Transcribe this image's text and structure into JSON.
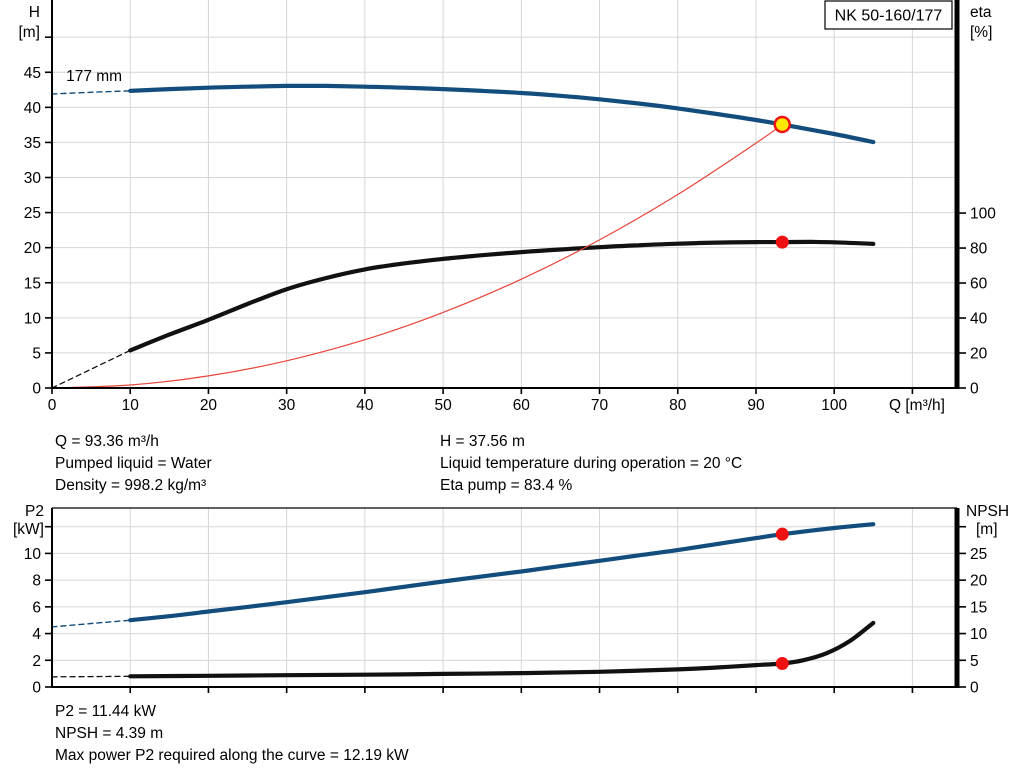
{
  "colors": {
    "curve_blue": "#134d7e",
    "curve_black": "#111111",
    "curve_red": "#e8443a",
    "marker_red": "#ee1111",
    "marker_yellow": "#ffe600",
    "grid": "#d6d6d6",
    "axis": "#000000",
    "box_bg": "#ffffff"
  },
  "info_top": {
    "left": [
      "Q = 93.36 m³/h",
      "Pumped liquid = Water",
      "Density = 998.2 kg/m³"
    ],
    "right": [
      "H = 37.56 m",
      "Liquid temperature during operation = 20 °C",
      "Eta pump = 83.4 %"
    ]
  },
  "info_bottom": {
    "lines": [
      "P2 = 11.44 kW",
      "NPSH = 4.39 m",
      "Max power P2 required along the curve = 12.19 kW"
    ]
  },
  "chart_data": [
    {
      "type": "line",
      "name": "qh-eta-chart",
      "title": "NK 50-160/177",
      "x_axis": {
        "label": "Q [m³/h]",
        "min": 0,
        "max": 115.7,
        "ticks_labeled": [
          0,
          10,
          20,
          30,
          40,
          50,
          60,
          70,
          80,
          90,
          100
        ],
        "ticks_unlabeled": [
          110
        ],
        "grid": [
          10,
          20,
          30,
          40,
          50,
          60,
          70,
          80,
          90,
          100,
          110
        ]
      },
      "y_left": {
        "label": [
          "H",
          "[m]"
        ],
        "min": 0,
        "max": 55.3,
        "ticks_labeled": [
          0,
          5,
          10,
          15,
          20,
          25,
          30,
          35,
          40,
          45
        ],
        "ticks_unlabeled": [
          50
        ],
        "grid": [
          5,
          10,
          15,
          20,
          25,
          30,
          35,
          40,
          45,
          50
        ]
      },
      "y_right": {
        "label": [
          "eta",
          "[%]"
        ],
        "min": 0,
        "max": 221.8,
        "ticks_labeled": [
          0,
          20,
          40,
          60,
          80,
          100
        ],
        "ticks_unlabeled": [],
        "grid": []
      },
      "annotations": [
        {
          "text": "177 mm",
          "x": 1.8,
          "y": 43.76,
          "axis": "left"
        }
      ],
      "series": [
        {
          "name": "head-curve-extrapolated",
          "axis": "left",
          "style": "dashed",
          "width": 1.4,
          "color_key": "curve_blue",
          "points": [
            [
              0,
              41.9
            ],
            [
              5,
              42.15
            ],
            [
              10,
              42.35
            ]
          ]
        },
        {
          "name": "head-curve",
          "axis": "left",
          "style": "solid",
          "width": 4.2,
          "color_key": "curve_blue",
          "points": [
            [
              10,
              42.35
            ],
            [
              15,
              42.6
            ],
            [
              20,
              42.8
            ],
            [
              25,
              42.95
            ],
            [
              30,
              43.05
            ],
            [
              35,
              43.05
            ],
            [
              40,
              42.95
            ],
            [
              45,
              42.8
            ],
            [
              50,
              42.6
            ],
            [
              55,
              42.35
            ],
            [
              60,
              42.05
            ],
            [
              65,
              41.65
            ],
            [
              70,
              41.15
            ],
            [
              75,
              40.55
            ],
            [
              80,
              39.85
            ],
            [
              85,
              39.05
            ],
            [
              90,
              38.2
            ],
            [
              93.36,
              37.56
            ],
            [
              100,
              36.2
            ],
            [
              105,
              35.05
            ]
          ]
        },
        {
          "name": "eta-curve-extrapolated",
          "axis": "right",
          "style": "dashed",
          "width": 1.3,
          "color_key": "curve_black",
          "points": [
            [
              0,
              0
            ],
            [
              10,
              21.5
            ]
          ]
        },
        {
          "name": "eta-curve",
          "axis": "right",
          "style": "solid",
          "width": 4.2,
          "color_key": "curve_black",
          "points": [
            [
              10,
              21.5
            ],
            [
              15,
              30.5
            ],
            [
              20,
              39
            ],
            [
              25,
              48
            ],
            [
              30,
              56.5
            ],
            [
              35,
              62.8
            ],
            [
              40,
              67.8
            ],
            [
              45,
              71.2
            ],
            [
              50,
              73.8
            ],
            [
              55,
              75.9
            ],
            [
              60,
              77.7
            ],
            [
              65,
              79.2
            ],
            [
              70,
              80.5
            ],
            [
              75,
              81.6
            ],
            [
              80,
              82.5
            ],
            [
              85,
              83.1
            ],
            [
              90,
              83.4
            ],
            [
              93.36,
              83.4
            ],
            [
              97,
              83.5
            ],
            [
              100,
              83.3
            ],
            [
              105,
              82.4
            ]
          ]
        },
        {
          "name": "system-resistance-curve",
          "axis": "left",
          "style": "solid",
          "width": 1.2,
          "color_key": "curve_red",
          "points": [
            [
              0,
              0
            ],
            [
              10,
              0.43
            ],
            [
              20,
              1.72
            ],
            [
              30,
              3.88
            ],
            [
              40,
              6.89
            ],
            [
              50,
              10.77
            ],
            [
              60,
              15.51
            ],
            [
              70,
              21.11
            ],
            [
              80,
              27.58
            ],
            [
              90,
              34.9
            ],
            [
              93.36,
              37.56
            ]
          ]
        }
      ],
      "markers": [
        {
          "name": "duty-point-qh",
          "axis": "left",
          "x": 93.36,
          "y": 37.56,
          "r": 7.5,
          "fill_key": "marker_yellow",
          "stroke_key": "marker_red",
          "stroke_width": 2.5
        },
        {
          "name": "duty-point-eta",
          "axis": "right",
          "x": 93.36,
          "y": 83.4,
          "r": 6.5,
          "fill_key": "marker_red"
        }
      ]
    },
    {
      "type": "line",
      "name": "p2-npsh-chart",
      "title": "",
      "x_axis": {
        "label": "",
        "min": 0,
        "max": 115.7,
        "ticks_labeled": [],
        "ticks_unlabeled": [
          10,
          20,
          30,
          40,
          50,
          60,
          70,
          80,
          90,
          100,
          110
        ],
        "grid": [
          10,
          20,
          30,
          40,
          50,
          60,
          70,
          80,
          90,
          100,
          110
        ]
      },
      "y_left": {
        "label": [
          "P2",
          "[kW]"
        ],
        "min": 0,
        "max": 13.4,
        "ticks_labeled": [
          0,
          2,
          4,
          6,
          8,
          10
        ],
        "ticks_unlabeled": [
          12
        ],
        "grid": [
          2,
          4,
          6,
          8,
          10,
          12
        ]
      },
      "y_right": {
        "label": [
          "NPSH",
          "[m]"
        ],
        "min": 0,
        "max": 33.5,
        "ticks_labeled": [
          0,
          5,
          10,
          15,
          20,
          25
        ],
        "ticks_unlabeled": [
          30
        ],
        "grid": []
      },
      "annotations": [],
      "series": [
        {
          "name": "p2-curve-extrapolated",
          "axis": "left",
          "style": "dashed",
          "width": 1.4,
          "color_key": "curve_blue",
          "points": [
            [
              0,
              4.5
            ],
            [
              5,
              4.75
            ],
            [
              10,
              5.0
            ]
          ]
        },
        {
          "name": "p2-curve",
          "axis": "left",
          "style": "solid",
          "width": 4.2,
          "color_key": "curve_blue",
          "points": [
            [
              10,
              5.0
            ],
            [
              15,
              5.3
            ],
            [
              20,
              5.65
            ],
            [
              25,
              6.0
            ],
            [
              30,
              6.35
            ],
            [
              35,
              6.72
            ],
            [
              40,
              7.1
            ],
            [
              45,
              7.5
            ],
            [
              50,
              7.9
            ],
            [
              55,
              8.28
            ],
            [
              60,
              8.65
            ],
            [
              65,
              9.05
            ],
            [
              70,
              9.45
            ],
            [
              75,
              9.85
            ],
            [
              80,
              10.25
            ],
            [
              85,
              10.7
            ],
            [
              90,
              11.15
            ],
            [
              93.36,
              11.44
            ],
            [
              100,
              11.9
            ],
            [
              105,
              12.19
            ]
          ]
        },
        {
          "name": "npsh-curve-extrapolated",
          "axis": "right",
          "style": "dashed",
          "width": 1.3,
          "color_key": "curve_black",
          "points": [
            [
              0,
              1.9
            ],
            [
              10,
              2.0
            ]
          ]
        },
        {
          "name": "npsh-curve",
          "axis": "right",
          "style": "solid",
          "width": 4.2,
          "color_key": "curve_black",
          "points": [
            [
              10,
              2.0
            ],
            [
              20,
              2.1
            ],
            [
              30,
              2.2
            ],
            [
              40,
              2.3
            ],
            [
              50,
              2.45
            ],
            [
              60,
              2.6
            ],
            [
              70,
              2.85
            ],
            [
              80,
              3.3
            ],
            [
              85,
              3.65
            ],
            [
              90,
              4.1
            ],
            [
              93.36,
              4.39
            ],
            [
              96,
              5.0
            ],
            [
              99,
              6.3
            ],
            [
              102,
              8.6
            ],
            [
              105,
              12.0
            ]
          ]
        }
      ],
      "markers": [
        {
          "name": "duty-point-p2",
          "axis": "left",
          "x": 93.36,
          "y": 11.44,
          "r": 6.5,
          "fill_key": "marker_red"
        },
        {
          "name": "duty-point-npsh",
          "axis": "right",
          "x": 93.36,
          "y": 4.39,
          "r": 6.5,
          "fill_key": "marker_red"
        }
      ]
    }
  ]
}
